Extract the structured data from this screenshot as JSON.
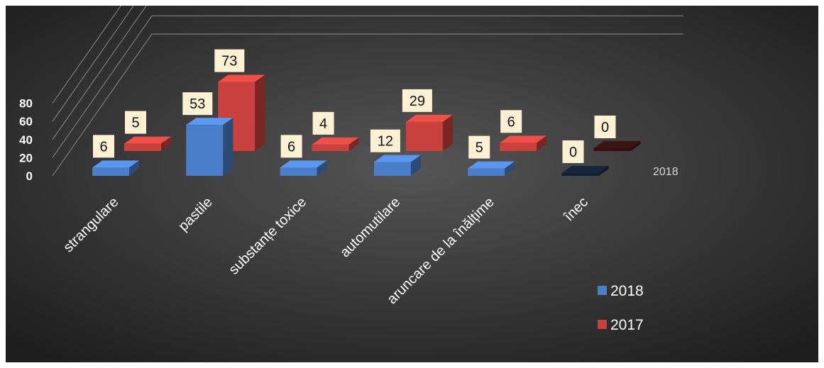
{
  "chart_data": {
    "type": "bar",
    "categories": [
      "strangulare",
      "pastile",
      "substanțe toxice",
      "automutilare",
      "aruncare de la înălțime",
      "înec"
    ],
    "series": [
      {
        "name": "2018",
        "values": [
          6,
          53,
          6,
          12,
          5,
          0
        ],
        "color": "#4a7ec8"
      },
      {
        "name": "2017",
        "values": [
          5,
          73,
          4,
          29,
          6,
          0
        ],
        "color": "#c9413c"
      }
    ],
    "depth_axis_label": "2018",
    "y_ticks": [
      "0",
      "20",
      "40",
      "60",
      "80"
    ],
    "ylim": [
      0,
      80
    ],
    "grid": true,
    "legend_position": "bottom-right",
    "title": "",
    "xlabel": "",
    "ylabel": ""
  }
}
